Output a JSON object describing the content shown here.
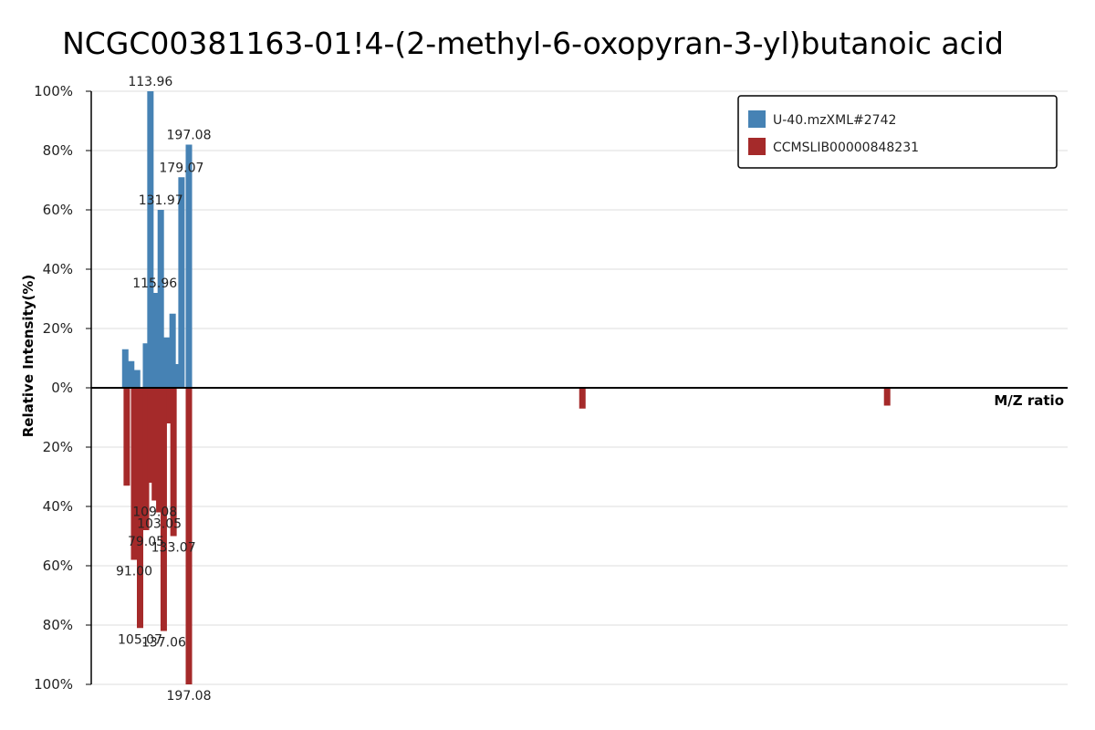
{
  "chart_data": {
    "type": "bar",
    "title": "NCGC00381163-01!4-(2-methyl-6-oxopyran-3-yl)butanoic  acid",
    "xlabel": "M/Z ratio",
    "ylabel": "Relative Intensity(%)",
    "ylim": [
      -100,
      100
    ],
    "xlim": [
      65,
      395
    ],
    "y_ticks": [
      "100%",
      "80%",
      "60%",
      "40%",
      "20%",
      "0%",
      "20%",
      "40%",
      "60%",
      "80%",
      "100%"
    ],
    "grid": true,
    "legend_position": "top-right",
    "series": [
      {
        "name": "U-40.mzXML#2742",
        "color": "#4682b4",
        "direction": "up",
        "peaks": [
          {
            "mz": 76.5,
            "intensity": 13
          },
          {
            "mz": 78.5,
            "intensity": 9
          },
          {
            "mz": 80.5,
            "intensity": 6
          },
          {
            "mz": 83.5,
            "intensity": 15
          },
          {
            "mz": 85.0,
            "intensity": 100,
            "label": "113.96"
          },
          {
            "mz": 86.5,
            "intensity": 32,
            "label": "115.96"
          },
          {
            "mz": 88.5,
            "intensity": 60,
            "label": "131.97"
          },
          {
            "mz": 90.5,
            "intensity": 17
          },
          {
            "mz": 92.5,
            "intensity": 25
          },
          {
            "mz": 93.8,
            "intensity": 8
          },
          {
            "mz": 95.5,
            "intensity": 71,
            "label": "179.07"
          },
          {
            "mz": 98.0,
            "intensity": 82,
            "label": "197.08"
          }
        ]
      },
      {
        "name": "CCMSLIB00000848231",
        "color": "#a52a2a",
        "direction": "down",
        "peaks": [
          {
            "mz": 77.0,
            "intensity": 33
          },
          {
            "mz": 79.5,
            "intensity": 58,
            "label": "91.00"
          },
          {
            "mz": 81.5,
            "intensity": 81,
            "label": "105.07"
          },
          {
            "mz": 83.5,
            "intensity": 48,
            "label": "79.05"
          },
          {
            "mz": 85.0,
            "intensity": 32
          },
          {
            "mz": 86.5,
            "intensity": 38,
            "label": "109.08"
          },
          {
            "mz": 88.0,
            "intensity": 42,
            "label": "103.05"
          },
          {
            "mz": 89.5,
            "intensity": 82,
            "label": "137.06"
          },
          {
            "mz": 91.5,
            "intensity": 12
          },
          {
            "mz": 92.8,
            "intensity": 50,
            "label": "133.07"
          },
          {
            "mz": 98.0,
            "intensity": 100,
            "label": "197.08"
          },
          {
            "mz": 231.0,
            "intensity": 7
          },
          {
            "mz": 334.0,
            "intensity": 6
          }
        ]
      }
    ]
  }
}
